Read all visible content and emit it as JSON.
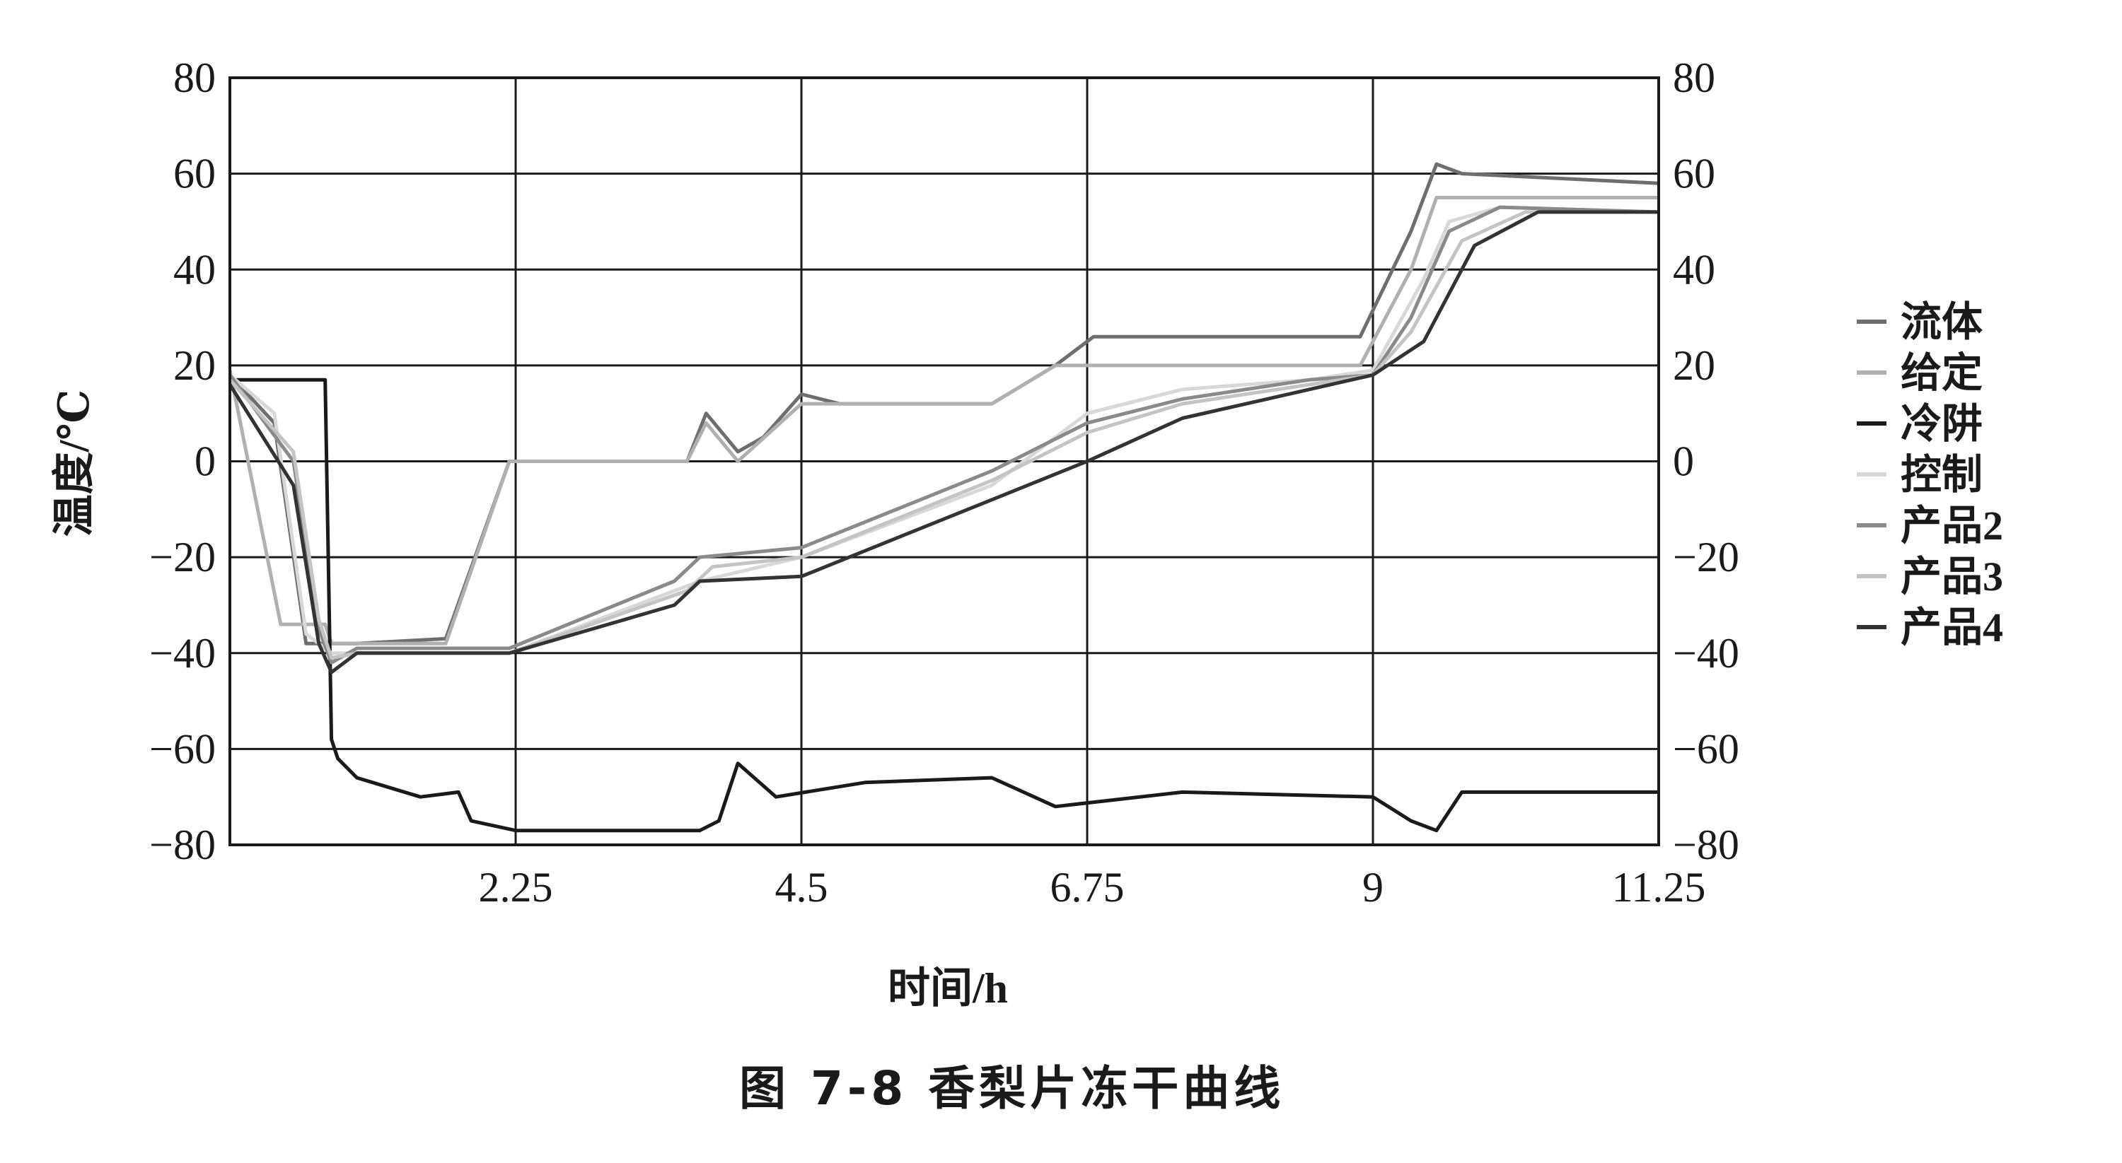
{
  "figure": {
    "caption": "图 7-8    香梨片冻干曲线"
  },
  "chart_data": {
    "type": "line",
    "xlabel": "时间/h",
    "ylabel": "温度/℃",
    "xlim": [
      0,
      11.25
    ],
    "ylim": [
      -80,
      80
    ],
    "x_ticks": [
      2.25,
      4.5,
      6.75,
      9,
      11.25
    ],
    "x_tick_labels": [
      "2.25",
      "4.5",
      "6.75",
      "9",
      "11.25"
    ],
    "y_ticks": [
      -80,
      -60,
      -40,
      -20,
      0,
      20,
      40,
      60,
      80
    ],
    "y_tick_labels": [
      "−80",
      "−60",
      "−40",
      "−20",
      "0",
      "20",
      "40",
      "60",
      "80"
    ],
    "grid": true,
    "secondary_y_axis": true,
    "legend_position": "right",
    "legend_entries": [
      "流体",
      "给定",
      "冷阱",
      "控制",
      "产品2",
      "产品3",
      "产品4"
    ],
    "series": [
      {
        "name": "流体",
        "color": "#6e6e6e",
        "points": [
          [
            0,
            18
          ],
          [
            0.35,
            8
          ],
          [
            0.6,
            -38
          ],
          [
            1.0,
            -38
          ],
          [
            1.7,
            -37
          ],
          [
            2.2,
            0
          ],
          [
            3.6,
            0
          ],
          [
            3.75,
            10
          ],
          [
            4.0,
            2
          ],
          [
            4.2,
            5
          ],
          [
            4.5,
            14
          ],
          [
            4.8,
            12
          ],
          [
            5.5,
            12
          ],
          [
            6.0,
            12
          ],
          [
            6.5,
            20
          ],
          [
            6.8,
            26
          ],
          [
            8.9,
            26
          ],
          [
            9.3,
            48
          ],
          [
            9.5,
            62
          ],
          [
            9.7,
            60
          ],
          [
            11.25,
            58
          ]
        ]
      },
      {
        "name": "给定",
        "color": "#b0b0b0",
        "points": [
          [
            0,
            19
          ],
          [
            0.4,
            -34
          ],
          [
            0.75,
            -34
          ],
          [
            0.8,
            -38
          ],
          [
            1.7,
            -38
          ],
          [
            2.2,
            0
          ],
          [
            3.6,
            0
          ],
          [
            3.75,
            8
          ],
          [
            4.0,
            0
          ],
          [
            4.5,
            12
          ],
          [
            6.0,
            12
          ],
          [
            6.5,
            20
          ],
          [
            8.9,
            20
          ],
          [
            9.3,
            40
          ],
          [
            9.5,
            55
          ],
          [
            11.25,
            55
          ]
        ]
      },
      {
        "name": "冷阱",
        "color": "#1a1a1a",
        "points": [
          [
            0,
            17
          ],
          [
            0.75,
            17
          ],
          [
            0.8,
            -58
          ],
          [
            0.85,
            -62
          ],
          [
            1.0,
            -66
          ],
          [
            1.5,
            -70
          ],
          [
            1.8,
            -69
          ],
          [
            1.9,
            -75
          ],
          [
            2.25,
            -77
          ],
          [
            3.7,
            -77
          ],
          [
            3.85,
            -75
          ],
          [
            4.0,
            -63
          ],
          [
            4.3,
            -70
          ],
          [
            5.0,
            -67
          ],
          [
            6.0,
            -66
          ],
          [
            6.5,
            -72
          ],
          [
            7.5,
            -69
          ],
          [
            9.0,
            -70
          ],
          [
            9.3,
            -75
          ],
          [
            9.5,
            -77
          ],
          [
            9.7,
            -69
          ],
          [
            11.25,
            -69
          ]
        ]
      },
      {
        "name": "控制",
        "color": "#d8d8d8",
        "points": [
          [
            0,
            18
          ],
          [
            0.35,
            10
          ],
          [
            0.6,
            -36
          ],
          [
            0.8,
            -40
          ],
          [
            2.2,
            -40
          ],
          [
            3.7,
            -25
          ],
          [
            4.5,
            -20
          ],
          [
            6.0,
            -5
          ],
          [
            6.75,
            10
          ],
          [
            7.5,
            15
          ],
          [
            8.5,
            17
          ],
          [
            9.0,
            19
          ],
          [
            9.4,
            38
          ],
          [
            9.6,
            50
          ],
          [
            10.0,
            53
          ],
          [
            11.25,
            52
          ]
        ]
      },
      {
        "name": "产品2",
        "color": "#8a8a8a",
        "points": [
          [
            0,
            18
          ],
          [
            0.5,
            0
          ],
          [
            0.7,
            -35
          ],
          [
            0.8,
            -42
          ],
          [
            1.0,
            -39
          ],
          [
            2.2,
            -39
          ],
          [
            3.5,
            -25
          ],
          [
            3.7,
            -20
          ],
          [
            4.5,
            -18
          ],
          [
            6.0,
            -2
          ],
          [
            6.75,
            8
          ],
          [
            7.5,
            13
          ],
          [
            8.5,
            17
          ],
          [
            9.0,
            18
          ],
          [
            9.3,
            30
          ],
          [
            9.6,
            48
          ],
          [
            10.0,
            53
          ],
          [
            11.25,
            52
          ]
        ]
      },
      {
        "name": "产品3",
        "color": "#c4c4c4",
        "points": [
          [
            0,
            17
          ],
          [
            0.5,
            2
          ],
          [
            0.7,
            -33
          ],
          [
            0.8,
            -41
          ],
          [
            1.0,
            -40
          ],
          [
            2.2,
            -40
          ],
          [
            3.6,
            -27
          ],
          [
            3.8,
            -22
          ],
          [
            4.5,
            -20
          ],
          [
            6.0,
            -4
          ],
          [
            6.75,
            6
          ],
          [
            7.5,
            12
          ],
          [
            8.5,
            16
          ],
          [
            9.0,
            18
          ],
          [
            9.3,
            27
          ],
          [
            9.7,
            46
          ],
          [
            10.2,
            52
          ],
          [
            11.25,
            52
          ]
        ]
      },
      {
        "name": "产品4",
        "color": "#333333",
        "points": [
          [
            0,
            16
          ],
          [
            0.5,
            -5
          ],
          [
            0.7,
            -38
          ],
          [
            0.8,
            -44
          ],
          [
            1.0,
            -40
          ],
          [
            2.2,
            -40
          ],
          [
            3.5,
            -30
          ],
          [
            3.7,
            -25
          ],
          [
            4.5,
            -24
          ],
          [
            6.0,
            -8
          ],
          [
            6.75,
            0
          ],
          [
            7.5,
            9
          ],
          [
            8.5,
            15
          ],
          [
            9.0,
            18
          ],
          [
            9.4,
            25
          ],
          [
            9.8,
            45
          ],
          [
            10.3,
            52
          ],
          [
            11.25,
            52
          ]
        ]
      }
    ]
  }
}
